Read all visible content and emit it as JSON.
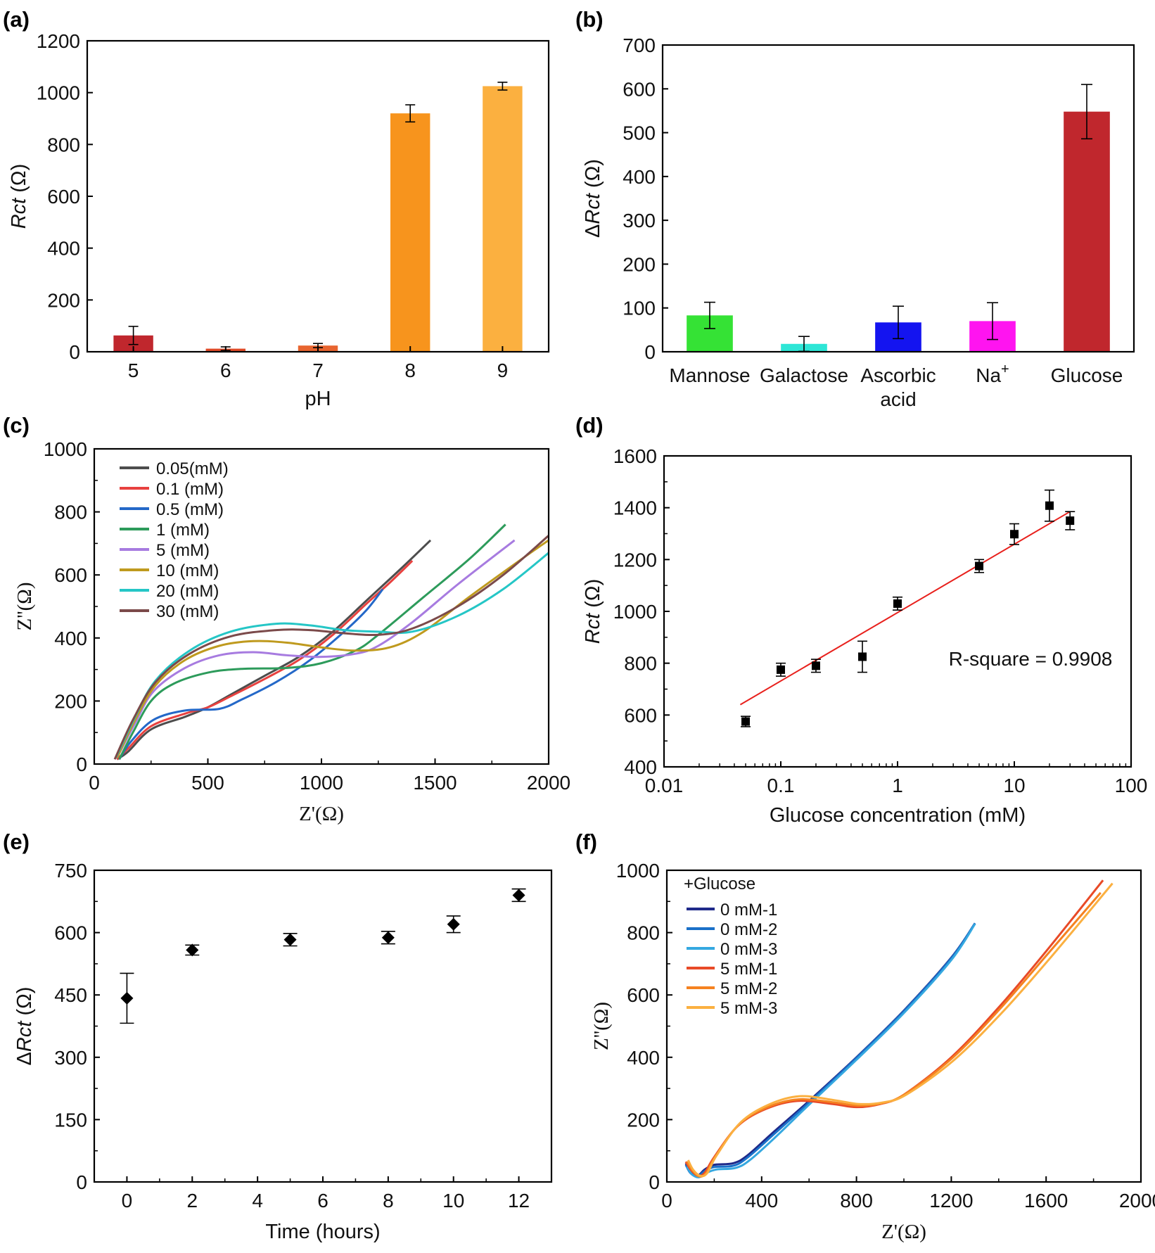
{
  "chart_data": [
    {
      "panel": "(a)",
      "type": "bar",
      "categories": [
        "5",
        "6",
        "7",
        "8",
        "9"
      ],
      "values": [
        63,
        12,
        24,
        920,
        1025
      ],
      "errors": [
        35,
        7,
        8,
        33,
        15
      ],
      "colors": [
        "#c0272d",
        "#e04a27",
        "#e86530",
        "#f7941d",
        "#fbb040"
      ],
      "xlabel": "pH",
      "ylabel_italic": "Rct",
      "ylabel_unit": " (Ω)",
      "ylim": [
        0,
        1200
      ],
      "yticks": [
        0,
        200,
        400,
        600,
        800,
        1000,
        1200
      ]
    },
    {
      "panel": "(b)",
      "type": "bar",
      "categories": [
        "Mannose",
        "Galactose",
        "Ascorbic acid",
        "Na+",
        "Glucose"
      ],
      "category_lines": [
        [
          "Mannose"
        ],
        [
          "Galactose"
        ],
        [
          "Ascorbic",
          "acid"
        ],
        [
          "Na"
        ],
        [
          "Glucose"
        ]
      ],
      "superscript": [
        "",
        "",
        "",
        "+",
        ""
      ],
      "values": [
        83,
        18,
        67,
        70,
        548
      ],
      "errors": [
        30,
        17,
        37,
        42,
        62
      ],
      "colors": [
        "#35e235",
        "#2ee6d6",
        "#1414f0",
        "#ff14f0",
        "#c0272d"
      ],
      "ylabel_prefix": "Δ",
      "ylabel_italic": "Rct",
      "ylabel_unit": " (Ω)",
      "ylim": [
        0,
        700
      ],
      "yticks": [
        0,
        100,
        200,
        300,
        400,
        500,
        600,
        700
      ]
    },
    {
      "panel": "(c)",
      "type": "line",
      "xlabel": "Z'(Ω)",
      "ylabel": "Z''(Ω)",
      "xlim": [
        0,
        2000
      ],
      "ylim": [
        0,
        1000
      ],
      "xticks": [
        0,
        500,
        1000,
        1500,
        2000
      ],
      "yticks": [
        0,
        200,
        400,
        600,
        800,
        1000
      ],
      "series": [
        {
          "name": "0.05(mM)",
          "color": "#4d4d4d",
          "points": [
            [
              100,
              15
            ],
            [
              150,
              40
            ],
            [
              250,
              110
            ],
            [
              400,
              150
            ],
            [
              500,
              180
            ],
            [
              600,
              220
            ],
            [
              750,
              280
            ],
            [
              900,
              340
            ],
            [
              1050,
              420
            ],
            [
              1200,
              520
            ],
            [
              1350,
              620
            ],
            [
              1480,
              710
            ]
          ]
        },
        {
          "name": "0.1 (mM)",
          "color": "#e8413f",
          "points": [
            [
              100,
              15
            ],
            [
              150,
              50
            ],
            [
              250,
              120
            ],
            [
              400,
              160
            ],
            [
              500,
              180
            ],
            [
              600,
              215
            ],
            [
              750,
              270
            ],
            [
              900,
              330
            ],
            [
              1050,
              410
            ],
            [
              1200,
              510
            ],
            [
              1300,
              575
            ],
            [
              1400,
              645
            ]
          ]
        },
        {
          "name": "0.5 (mM)",
          "color": "#2468c8",
          "points": [
            [
              110,
              15
            ],
            [
              160,
              70
            ],
            [
              260,
              140
            ],
            [
              400,
              170
            ],
            [
              550,
              175
            ],
            [
              650,
              205
            ],
            [
              800,
              260
            ],
            [
              950,
              330
            ],
            [
              1100,
              420
            ],
            [
              1200,
              490
            ],
            [
              1270,
              555
            ]
          ]
        },
        {
          "name": "1 (mM)",
          "color": "#2d9b5b",
          "points": [
            [
              110,
              15
            ],
            [
              170,
              100
            ],
            [
              250,
              200
            ],
            [
              350,
              255
            ],
            [
              500,
              290
            ],
            [
              650,
              302
            ],
            [
              850,
              305
            ],
            [
              1000,
              320
            ],
            [
              1150,
              360
            ],
            [
              1250,
              410
            ],
            [
              1450,
              530
            ],
            [
              1650,
              650
            ],
            [
              1810,
              760
            ]
          ]
        },
        {
          "name": "5 (mM)",
          "color": "#a77be0",
          "points": [
            [
              100,
              20
            ],
            [
              180,
              130
            ],
            [
              260,
              230
            ],
            [
              400,
              305
            ],
            [
              550,
              345
            ],
            [
              700,
              355
            ],
            [
              850,
              345
            ],
            [
              1000,
              340
            ],
            [
              1150,
              350
            ],
            [
              1250,
              375
            ],
            [
              1400,
              450
            ],
            [
              1600,
              570
            ],
            [
              1850,
              710
            ]
          ]
        },
        {
          "name": "10 (mM)",
          "color": "#bf9a1e",
          "points": [
            [
              100,
              20
            ],
            [
              180,
              140
            ],
            [
              270,
              250
            ],
            [
              400,
              330
            ],
            [
              550,
              375
            ],
            [
              700,
              390
            ],
            [
              850,
              385
            ],
            [
              1000,
              370
            ],
            [
              1150,
              360
            ],
            [
              1300,
              370
            ],
            [
              1450,
              420
            ],
            [
              1650,
              530
            ],
            [
              1900,
              660
            ],
            [
              2000,
              710
            ]
          ]
        },
        {
          "name": "20 (mM)",
          "color": "#25c6c6",
          "points": [
            [
              95,
              20
            ],
            [
              180,
              150
            ],
            [
              270,
              265
            ],
            [
              420,
              360
            ],
            [
              600,
              420
            ],
            [
              800,
              445
            ],
            [
              950,
              440
            ],
            [
              1100,
              425
            ],
            [
              1250,
              420
            ],
            [
              1400,
              420
            ],
            [
              1600,
              470
            ],
            [
              1800,
              555
            ],
            [
              2000,
              670
            ]
          ]
        },
        {
          "name": "30 (mM)",
          "color": "#7b4a4a",
          "points": [
            [
              90,
              15
            ],
            [
              170,
              140
            ],
            [
              270,
              260
            ],
            [
              420,
              350
            ],
            [
              600,
              405
            ],
            [
              800,
              425
            ],
            [
              950,
              425
            ],
            [
              1100,
              415
            ],
            [
              1250,
              410
            ],
            [
              1400,
              430
            ],
            [
              1600,
              500
            ],
            [
              1800,
              600
            ],
            [
              2000,
              725
            ]
          ]
        }
      ]
    },
    {
      "panel": "(d)",
      "type": "scatter",
      "xscale": "log",
      "xlim": [
        0.01,
        100
      ],
      "ylim": [
        400,
        1600
      ],
      "xticks": [
        0.01,
        0.1,
        1,
        10,
        100
      ],
      "xtick_labels": [
        "0.01",
        "0.1",
        "1",
        "10",
        "100"
      ],
      "yticks": [
        400,
        600,
        800,
        1000,
        1200,
        1400,
        1600
      ],
      "xlabel": "Glucose concentration (mM)",
      "ylabel_italic": "Rct",
      "ylabel_unit": " (Ω)",
      "points": [
        [
          0.05,
          575,
          20
        ],
        [
          0.1,
          775,
          25
        ],
        [
          0.2,
          790,
          25
        ],
        [
          0.5,
          825,
          60
        ],
        [
          1,
          1030,
          25
        ],
        [
          5,
          1175,
          25
        ],
        [
          10,
          1298,
          40
        ],
        [
          20,
          1408,
          60
        ],
        [
          30,
          1350,
          35
        ]
      ],
      "fit": {
        "x": [
          0.045,
          30
        ],
        "y": [
          640,
          1385
        ],
        "color": "#e8201c"
      },
      "annotation": "R-square = 0.9908"
    },
    {
      "panel": "(e)",
      "type": "scatter",
      "xlim": [
        -1,
        13
      ],
      "ylim": [
        0,
        750
      ],
      "xticks": [
        0,
        2,
        4,
        6,
        8,
        10,
        12
      ],
      "yticks": [
        0,
        150,
        300,
        450,
        600,
        750
      ],
      "xlabel": "Time (hours)",
      "ylabel_prefix": "Δ",
      "ylabel_italic": "Rct",
      "ylabel_unit": " (Ω)",
      "points": [
        [
          0,
          442,
          60
        ],
        [
          2,
          558,
          12
        ],
        [
          5,
          583,
          15
        ],
        [
          8,
          588,
          15
        ],
        [
          10,
          620,
          20
        ],
        [
          12,
          690,
          15
        ]
      ]
    },
    {
      "panel": "(f)",
      "type": "line",
      "xlabel": "Z'(Ω)",
      "ylabel": "Z''(Ω)",
      "xlim": [
        0,
        2000
      ],
      "ylim": [
        0,
        1000
      ],
      "xticks": [
        0,
        400,
        800,
        1200,
        1600,
        2000
      ],
      "yticks": [
        0,
        200,
        400,
        600,
        800,
        1000
      ],
      "legend_title": "+Glucose",
      "series": [
        {
          "name": "0 mM-1",
          "color": "#1f2a8a",
          "points": [
            [
              80,
              60
            ],
            [
              100,
              30
            ],
            [
              130,
              20
            ],
            [
              160,
              40
            ],
            [
              200,
              55
            ],
            [
              280,
              60
            ],
            [
              340,
              85
            ],
            [
              450,
              160
            ],
            [
              600,
              260
            ],
            [
              800,
              400
            ],
            [
              1000,
              550
            ],
            [
              1200,
              720
            ],
            [
              1300,
              830
            ]
          ]
        },
        {
          "name": "0 mM-2",
          "color": "#1a70c8",
          "points": [
            [
              80,
              55
            ],
            [
              100,
              28
            ],
            [
              130,
              18
            ],
            [
              160,
              35
            ],
            [
              200,
              48
            ],
            [
              280,
              52
            ],
            [
              340,
              78
            ],
            [
              450,
              152
            ],
            [
              600,
              255
            ],
            [
              800,
              398
            ],
            [
              1000,
              548
            ],
            [
              1200,
              718
            ],
            [
              1300,
              830
            ]
          ]
        },
        {
          "name": "0 mM-3",
          "color": "#35a8e0",
          "points": [
            [
              85,
              50
            ],
            [
              105,
              25
            ],
            [
              135,
              15
            ],
            [
              170,
              30
            ],
            [
              210,
              40
            ],
            [
              290,
              45
            ],
            [
              350,
              70
            ],
            [
              460,
              145
            ],
            [
              600,
              248
            ],
            [
              800,
              392
            ],
            [
              1000,
              542
            ],
            [
              1200,
              712
            ],
            [
              1300,
              828
            ]
          ]
        },
        {
          "name": "5 mM-1",
          "color": "#e84a27",
          "points": [
            [
              80,
              65
            ],
            [
              100,
              40
            ],
            [
              130,
              20
            ],
            [
              160,
              30
            ],
            [
              200,
              80
            ],
            [
              300,
              180
            ],
            [
              420,
              235
            ],
            [
              550,
              260
            ],
            [
              700,
              250
            ],
            [
              800,
              240
            ],
            [
              900,
              250
            ],
            [
              1000,
              280
            ],
            [
              1200,
              400
            ],
            [
              1400,
              560
            ],
            [
              1600,
              740
            ],
            [
              1840,
              968
            ]
          ]
        },
        {
          "name": "5 mM-2",
          "color": "#f58220",
          "points": [
            [
              85,
              65
            ],
            [
              105,
              40
            ],
            [
              135,
              18
            ],
            [
              165,
              28
            ],
            [
              205,
              82
            ],
            [
              305,
              185
            ],
            [
              425,
              240
            ],
            [
              555,
              265
            ],
            [
              705,
              255
            ],
            [
              805,
              245
            ],
            [
              905,
              252
            ],
            [
              1005,
              282
            ],
            [
              1205,
              398
            ],
            [
              1405,
              555
            ],
            [
              1605,
              730
            ],
            [
              1830,
              928
            ]
          ]
        },
        {
          "name": "5 mM-3",
          "color": "#fbb040",
          "points": [
            [
              90,
              70
            ],
            [
              110,
              40
            ],
            [
              140,
              20
            ],
            [
              170,
              28
            ],
            [
              210,
              85
            ],
            [
              310,
              190
            ],
            [
              430,
              248
            ],
            [
              560,
              275
            ],
            [
              710,
              262
            ],
            [
              810,
              250
            ],
            [
              910,
              255
            ],
            [
              1010,
              280
            ],
            [
              1210,
              390
            ],
            [
              1410,
              540
            ],
            [
              1610,
              712
            ],
            [
              1880,
              958
            ]
          ]
        }
      ]
    }
  ]
}
